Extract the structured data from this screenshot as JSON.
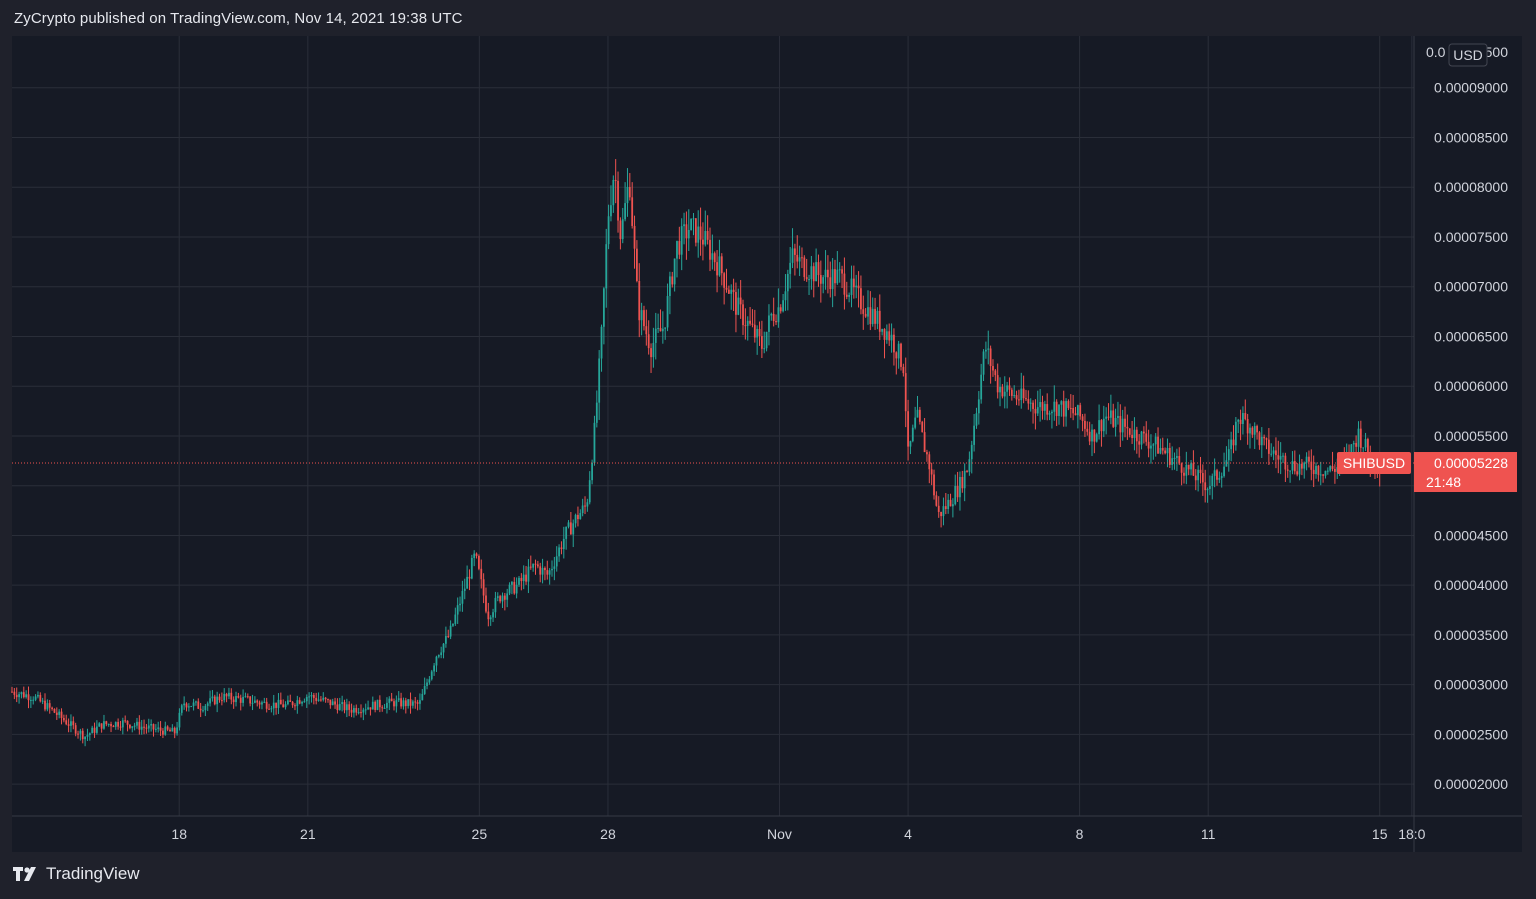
{
  "header": {
    "published_text": "ZyCrypto published on TradingView.com, Nov 14, 2021 19:38 UTC"
  },
  "footer": {
    "brand": "TradingView",
    "icon": "tradingview-logo-icon"
  },
  "currency_badge": "USD",
  "colors": {
    "background": "#1f212b",
    "plot_background": "#161a25",
    "grid": "#2a2e39",
    "up": "#26a69a",
    "down": "#ef5350",
    "axis_text": "#d1d4dc",
    "price_line": "#ef5350"
  },
  "chart_data": {
    "type": "candlestick",
    "title": "",
    "symbol": "SHIBUSD",
    "currency": "USD",
    "last_price": "0.00005228",
    "countdown": "21:48",
    "x_axis": {
      "tick_labels": [
        "18",
        "21",
        "25",
        "28",
        "Nov",
        "4",
        "8",
        "11",
        "15",
        "18:0"
      ],
      "tick_days": [
        18,
        21,
        25,
        28,
        32,
        35,
        39,
        42,
        46,
        46.75
      ],
      "range_days": [
        14.1,
        46.8
      ]
    },
    "y_axis": {
      "tick_labels": [
        "0.00009000",
        "0.00008500",
        "0.00008000",
        "0.00007500",
        "0.00007000",
        "0.00006500",
        "0.00006000",
        "0.00005500",
        "0.00005000",
        "0.00004500",
        "0.00004000",
        "0.00003500",
        "0.00003000",
        "0.00002500",
        "0.00002000"
      ],
      "tick_values": [
        9e-05,
        8.5e-05,
        8e-05,
        7.5e-05,
        7e-05,
        6.5e-05,
        6e-05,
        5.5e-05,
        5e-05,
        4.5e-05,
        4e-05,
        3.5e-05,
        3e-05,
        2.5e-05,
        2e-05
      ],
      "range": [
        1.68e-05,
        9.52e-05
      ],
      "top_label_partial": "0.0",
      "top_label_suffix": "500"
    },
    "grid": true,
    "price_path": {
      "x_days": [
        14.1,
        14.6,
        15.1,
        15.5,
        15.8,
        16.2,
        16.7,
        17.2,
        17.6,
        17.9,
        18.1,
        18.5,
        19.0,
        19.5,
        20.0,
        20.5,
        21.0,
        21.5,
        22.0,
        22.5,
        23.0,
        23.6,
        24.0,
        24.3,
        24.6,
        24.9,
        25.2,
        25.5,
        25.9,
        26.3,
        26.6,
        27.0,
        27.3,
        27.5,
        27.7,
        27.85,
        28.0,
        28.15,
        28.3,
        28.5,
        28.7,
        29.0,
        29.3,
        29.6,
        29.9,
        30.2,
        30.6,
        31.0,
        31.3,
        31.6,
        31.8,
        32.0,
        32.3,
        32.6,
        33.0,
        33.4,
        33.8,
        34.2,
        34.6,
        34.9,
        35.0,
        35.2,
        35.5,
        35.7,
        35.9,
        36.2,
        36.4,
        36.6,
        36.8,
        37.1,
        37.5,
        38.0,
        38.5,
        39.0,
        39.3,
        39.6,
        40.0,
        40.4,
        40.8,
        41.1,
        41.4,
        41.7,
        42.0,
        42.2,
        42.5,
        42.7,
        43.0,
        43.3,
        43.6,
        44.0,
        44.4,
        44.8,
        45.2,
        45.5,
        45.8,
        46.0
      ],
      "closes": [
        2.93e-05,
        2.88e-05,
        2.72e-05,
        2.58e-05,
        2.48e-05,
        2.6e-05,
        2.62e-05,
        2.57e-05,
        2.54e-05,
        2.52e-05,
        2.82e-05,
        2.78e-05,
        2.88e-05,
        2.85e-05,
        2.81e-05,
        2.79e-05,
        2.89e-05,
        2.82e-05,
        2.75e-05,
        2.79e-05,
        2.82e-05,
        2.8e-05,
        3.3e-05,
        3.5e-05,
        3.9e-05,
        4.3e-05,
        3.7e-05,
        3.9e-05,
        4e-05,
        4.2e-05,
        4.1e-05,
        4.5e-05,
        4.7e-05,
        4.8e-05,
        5.6e-05,
        6.5e-05,
        7.7e-05,
        8.2e-05,
        7.5e-05,
        8.1e-05,
        6.8e-05,
        6.4e-05,
        6.6e-05,
        7.4e-05,
        7.6e-05,
        7.5e-05,
        7.2e-05,
        6.8e-05,
        6.6e-05,
        6.4e-05,
        6.7e-05,
        6.8e-05,
        7.3e-05,
        7.2e-05,
        7.1e-05,
        7.1e-05,
        6.9e-05,
        6.7e-05,
        6.5e-05,
        6.2e-05,
        5.3e-05,
        5.7e-05,
        5.2e-05,
        4.7e-05,
        4.8e-05,
        5e-05,
        5.2e-05,
        5.8e-05,
        6.4e-05,
        6e-05,
        5.9e-05,
        5.8e-05,
        5.8e-05,
        5.7e-05,
        5.5e-05,
        5.7e-05,
        5.6e-05,
        5.5e-05,
        5.4e-05,
        5.3e-05,
        5.2e-05,
        5.1e-05,
        5e-05,
        5.1e-05,
        5.3e-05,
        5.7e-05,
        5.6e-05,
        5.4e-05,
        5.3e-05,
        5.2e-05,
        5.2e-05,
        5.15e-05,
        5.22e-05,
        5.53e-05,
        5.27e-05,
        5.228e-05
      ]
    }
  }
}
